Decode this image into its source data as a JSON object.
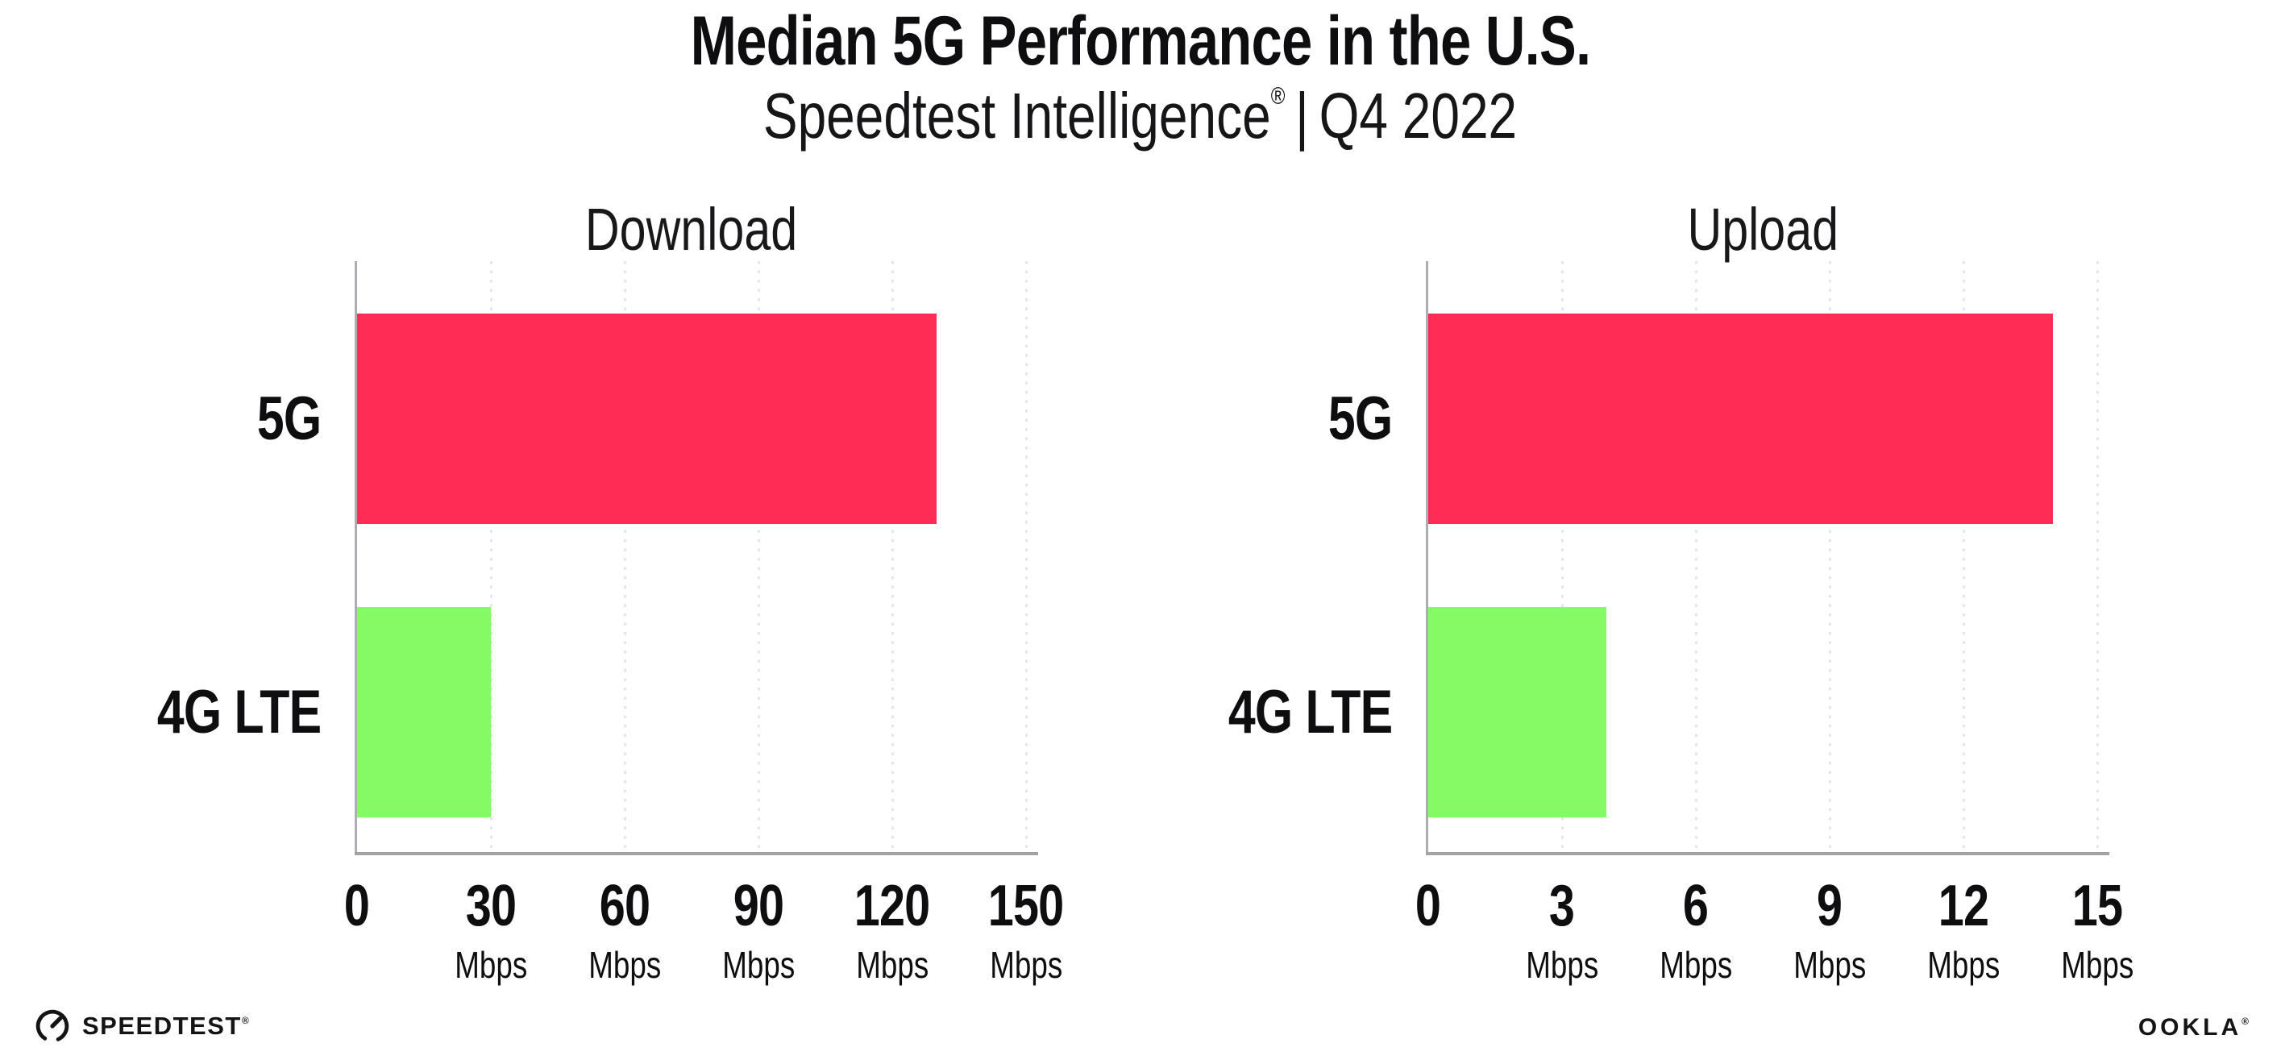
{
  "header": {
    "title": "Median 5G Performance in the U.S.",
    "subtitle": {
      "brand": "Speedtest Intelligence",
      "mark": "®",
      "separator": "|",
      "period": "Q4 2022"
    }
  },
  "chart_data": [
    {
      "type": "bar",
      "orientation": "horizontal",
      "title": "Download",
      "categories": [
        "5G",
        "4G LTE"
      ],
      "values": [
        130,
        30
      ],
      "unit": "Mbps",
      "xlim": [
        0,
        150
      ],
      "xticks": [
        0,
        30,
        60,
        90,
        120,
        150
      ],
      "tick_unit_label": "Mbps",
      "bar_colors": [
        "#FF2D55",
        "#85FA64"
      ],
      "grid": "dotted-vertical",
      "legend": "none"
    },
    {
      "type": "bar",
      "orientation": "horizontal",
      "title": "Upload",
      "categories": [
        "5G",
        "4G LTE"
      ],
      "values": [
        14,
        4
      ],
      "unit": "Mbps",
      "xlim": [
        0,
        15
      ],
      "xticks": [
        0,
        3,
        6,
        9,
        12,
        15
      ],
      "tick_unit_label": "Mbps",
      "bar_colors": [
        "#FF2D55",
        "#85FA64"
      ],
      "grid": "dotted-vertical",
      "legend": "none"
    }
  ],
  "footer": {
    "speedtest": {
      "label": "SPEEDTEST",
      "mark": "®"
    },
    "ookla": {
      "label": "OOKLA",
      "mark": "®"
    }
  },
  "colors": {
    "bar_5g": "#FF2D55",
    "bar_4g_lte": "#85FA64",
    "gridline": "#E4E4EE",
    "x_axis": "#A2A2A9",
    "y_axis": "#ADADB4",
    "text": "#0E0E10"
  }
}
